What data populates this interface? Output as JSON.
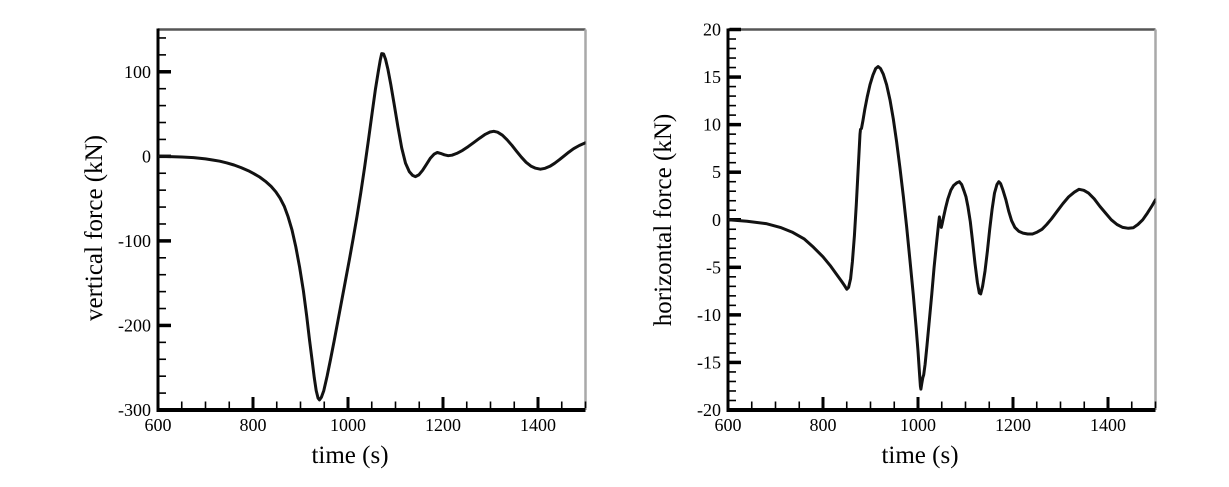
{
  "figure": {
    "background": "#ffffff"
  },
  "chart_data": [
    {
      "type": "line",
      "title": "",
      "xlabel": "time (s)",
      "ylabel": "vertical force (kN)",
      "xlim": [
        600,
        1500
      ],
      "ylim": [
        -300,
        150
      ],
      "xticks_major": [
        600,
        800,
        1000,
        1200,
        1400
      ],
      "xtick_minor_step": 50,
      "yticks_major": [
        -300,
        -200,
        -100,
        0,
        100
      ],
      "ytick_minor_step": 20,
      "grid": false,
      "legend": "none",
      "line_color": "#121212",
      "axis_color": "#000000",
      "frame_top_color": "#565656",
      "frame_right_color": "#a9a9a9",
      "series": [
        {
          "name": "vertical force",
          "points": [
            [
              600,
              0
            ],
            [
              625,
              -0.3
            ],
            [
              650,
              -0.8
            ],
            [
              675,
              -1.5
            ],
            [
              700,
              -3
            ],
            [
              715,
              -4.3
            ],
            [
              730,
              -5.8
            ],
            [
              745,
              -7.8
            ],
            [
              760,
              -10.3
            ],
            [
              775,
              -13.3
            ],
            [
              790,
              -17
            ],
            [
              802,
              -20.5
            ],
            [
              814,
              -24.5
            ],
            [
              826,
              -29.5
            ],
            [
              838,
              -35.5
            ],
            [
              848,
              -42
            ],
            [
              857,
              -49.5
            ],
            [
              866,
              -59.5
            ],
            [
              874,
              -71.5
            ],
            [
              882,
              -87
            ],
            [
              890,
              -107
            ],
            [
              898,
              -131
            ],
            [
              906,
              -159
            ],
            [
              913,
              -189
            ],
            [
              919,
              -217
            ],
            [
              925,
              -244
            ],
            [
              929,
              -262
            ],
            [
              933,
              -277
            ],
            [
              937,
              -286
            ],
            [
              940,
              -288
            ],
            [
              944,
              -285
            ],
            [
              949,
              -277
            ],
            [
              956,
              -260
            ],
            [
              963,
              -241
            ],
            [
              971,
              -218
            ],
            [
              979,
              -194
            ],
            [
              987,
              -170
            ],
            [
              995,
              -146
            ],
            [
              1003,
              -122
            ],
            [
              1011,
              -97
            ],
            [
              1019,
              -71
            ],
            [
              1027,
              -43
            ],
            [
              1035,
              -13
            ],
            [
              1043,
              19
            ],
            [
              1051,
              52
            ],
            [
              1058,
              80
            ],
            [
              1064,
              101
            ],
            [
              1068,
              114
            ],
            [
              1071,
              121.5
            ],
            [
              1075,
              121
            ],
            [
              1079,
              115
            ],
            [
              1084,
              103
            ],
            [
              1090,
              85
            ],
            [
              1097,
              62
            ],
            [
              1105,
              35
            ],
            [
              1113,
              10
            ],
            [
              1121,
              -8
            ],
            [
              1129,
              -18
            ],
            [
              1136,
              -22.5
            ],
            [
              1142,
              -24
            ],
            [
              1149,
              -22
            ],
            [
              1157,
              -16.5
            ],
            [
              1165,
              -9.5
            ],
            [
              1173,
              -2.5
            ],
            [
              1181,
              2.5
            ],
            [
              1188,
              4.5
            ],
            [
              1195,
              3.5
            ],
            [
              1203,
              1.8
            ],
            [
              1211,
              0.8
            ],
            [
              1219,
              1.3
            ],
            [
              1229,
              3.5
            ],
            [
              1241,
              7
            ],
            [
              1253,
              11.5
            ],
            [
              1265,
              16.5
            ],
            [
              1277,
              21.5
            ],
            [
              1289,
              26
            ],
            [
              1299,
              28.8
            ],
            [
              1307,
              29.6
            ],
            [
              1315,
              28.6
            ],
            [
              1325,
              25
            ],
            [
              1335,
              19.5
            ],
            [
              1345,
              13
            ],
            [
              1355,
              6
            ],
            [
              1365,
              -1
            ],
            [
              1375,
              -7
            ],
            [
              1385,
              -11.5
            ],
            [
              1395,
              -14
            ],
            [
              1405,
              -15.2
            ],
            [
              1415,
              -14.2
            ],
            [
              1425,
              -11.8
            ],
            [
              1435,
              -8.2
            ],
            [
              1445,
              -4
            ],
            [
              1455,
              0.5
            ],
            [
              1465,
              5
            ],
            [
              1475,
              9
            ],
            [
              1487,
              12.8
            ],
            [
              1500,
              16
            ]
          ]
        }
      ]
    },
    {
      "type": "line",
      "title": "",
      "xlabel": "time (s)",
      "ylabel": "horizontal force (kN)",
      "xlim": [
        600,
        1500
      ],
      "ylim": [
        -20,
        20
      ],
      "xticks_major": [
        600,
        800,
        1000,
        1200,
        1400
      ],
      "xtick_minor_step": 50,
      "yticks_major": [
        -20,
        -15,
        -10,
        -5,
        0,
        5,
        10,
        15,
        20
      ],
      "ytick_minor_step": 1,
      "grid": false,
      "legend": "none",
      "line_color": "#121212",
      "axis_color": "#000000",
      "frame_top_color": "#565656",
      "frame_right_color": "#a9a9a9",
      "series": [
        {
          "name": "horizontal force",
          "points": [
            [
              600,
              0
            ],
            [
              640,
              -0.15
            ],
            [
              680,
              -0.4
            ],
            [
              710,
              -0.8
            ],
            [
              735,
              -1.3
            ],
            [
              760,
              -2
            ],
            [
              780,
              -2.9
            ],
            [
              800,
              -3.9
            ],
            [
              815,
              -4.8
            ],
            [
              828,
              -5.7
            ],
            [
              838,
              -6.4
            ],
            [
              845,
              -6.9
            ],
            [
              850,
              -7.3
            ],
            [
              854,
              -7.1
            ],
            [
              858,
              -6.2
            ],
            [
              862,
              -4.4
            ],
            [
              866,
              -1.7
            ],
            [
              870,
              1.6
            ],
            [
              873,
              4.4
            ],
            [
              876,
              7.2
            ],
            [
              878,
              9
            ],
            [
              879,
              9.5
            ],
            [
              881,
              9.6
            ],
            [
              884,
              10.4
            ],
            [
              888,
              11.6
            ],
            [
              893,
              12.9
            ],
            [
              899,
              14.2
            ],
            [
              905,
              15.2
            ],
            [
              911,
              15.9
            ],
            [
              916,
              16.1
            ],
            [
              921,
              15.9
            ],
            [
              927,
              15.3
            ],
            [
              934,
              14.2
            ],
            [
              941,
              12.6
            ],
            [
              948,
              10.6
            ],
            [
              955,
              8.2
            ],
            [
              962,
              5.5
            ],
            [
              969,
              2.5
            ],
            [
              976,
              -0.7
            ],
            [
              983,
              -4.2
            ],
            [
              990,
              -7.9
            ],
            [
              996,
              -11.3
            ],
            [
              1000,
              -13.8
            ],
            [
              1003,
              -16
            ],
            [
              1005,
              -17.5
            ],
            [
              1006,
              -17.8
            ],
            [
              1008,
              -17.2
            ],
            [
              1010,
              -16.6
            ],
            [
              1012,
              -16.3
            ],
            [
              1015,
              -15.2
            ],
            [
              1019,
              -13.2
            ],
            [
              1024,
              -10.5
            ],
            [
              1029,
              -7.8
            ],
            [
              1034,
              -5
            ],
            [
              1039,
              -2.5
            ],
            [
              1043,
              -0.6
            ],
            [
              1045,
              0.3
            ],
            [
              1047,
              -0.4
            ],
            [
              1049,
              -0.8
            ],
            [
              1051,
              -0.4
            ],
            [
              1054,
              0.3
            ],
            [
              1058,
              1.2
            ],
            [
              1063,
              2.2
            ],
            [
              1069,
              3.1
            ],
            [
              1075,
              3.6
            ],
            [
              1082,
              3.9
            ],
            [
              1087,
              4
            ],
            [
              1092,
              3.7
            ],
            [
              1097,
              3
            ],
            [
              1101,
              2.4
            ],
            [
              1105,
              1.4
            ],
            [
              1110,
              -0.2
            ],
            [
              1115,
              -2.3
            ],
            [
              1120,
              -4.6
            ],
            [
              1125,
              -6.6
            ],
            [
              1129,
              -7.7
            ],
            [
              1132,
              -7.8
            ],
            [
              1136,
              -7
            ],
            [
              1141,
              -5.4
            ],
            [
              1146,
              -3.3
            ],
            [
              1151,
              -1
            ],
            [
              1156,
              1.1
            ],
            [
              1161,
              2.8
            ],
            [
              1166,
              3.7
            ],
            [
              1170,
              4
            ],
            [
              1174,
              3.8
            ],
            [
              1179,
              3.1
            ],
            [
              1185,
              2.1
            ],
            [
              1191,
              0.9
            ],
            [
              1197,
              -0.1
            ],
            [
              1204,
              -0.8
            ],
            [
              1212,
              -1.2
            ],
            [
              1221,
              -1.4
            ],
            [
              1231,
              -1.5
            ],
            [
              1241,
              -1.5
            ],
            [
              1251,
              -1.3
            ],
            [
              1261,
              -1
            ],
            [
              1271,
              -0.5
            ],
            [
              1281,
              0.1
            ],
            [
              1293,
              0.9
            ],
            [
              1305,
              1.7
            ],
            [
              1317,
              2.4
            ],
            [
              1329,
              2.9
            ],
            [
              1339,
              3.2
            ],
            [
              1349,
              3.1
            ],
            [
              1359,
              2.8
            ],
            [
              1371,
              2.2
            ],
            [
              1383,
              1.4
            ],
            [
              1395,
              0.7
            ],
            [
              1407,
              0
            ],
            [
              1419,
              -0.5
            ],
            [
              1431,
              -0.8
            ],
            [
              1443,
              -0.9
            ],
            [
              1453,
              -0.85
            ],
            [
              1463,
              -0.5
            ],
            [
              1473,
              0
            ],
            [
              1483,
              0.7
            ],
            [
              1493,
              1.5
            ],
            [
              1500,
              2.1
            ]
          ]
        }
      ]
    }
  ]
}
